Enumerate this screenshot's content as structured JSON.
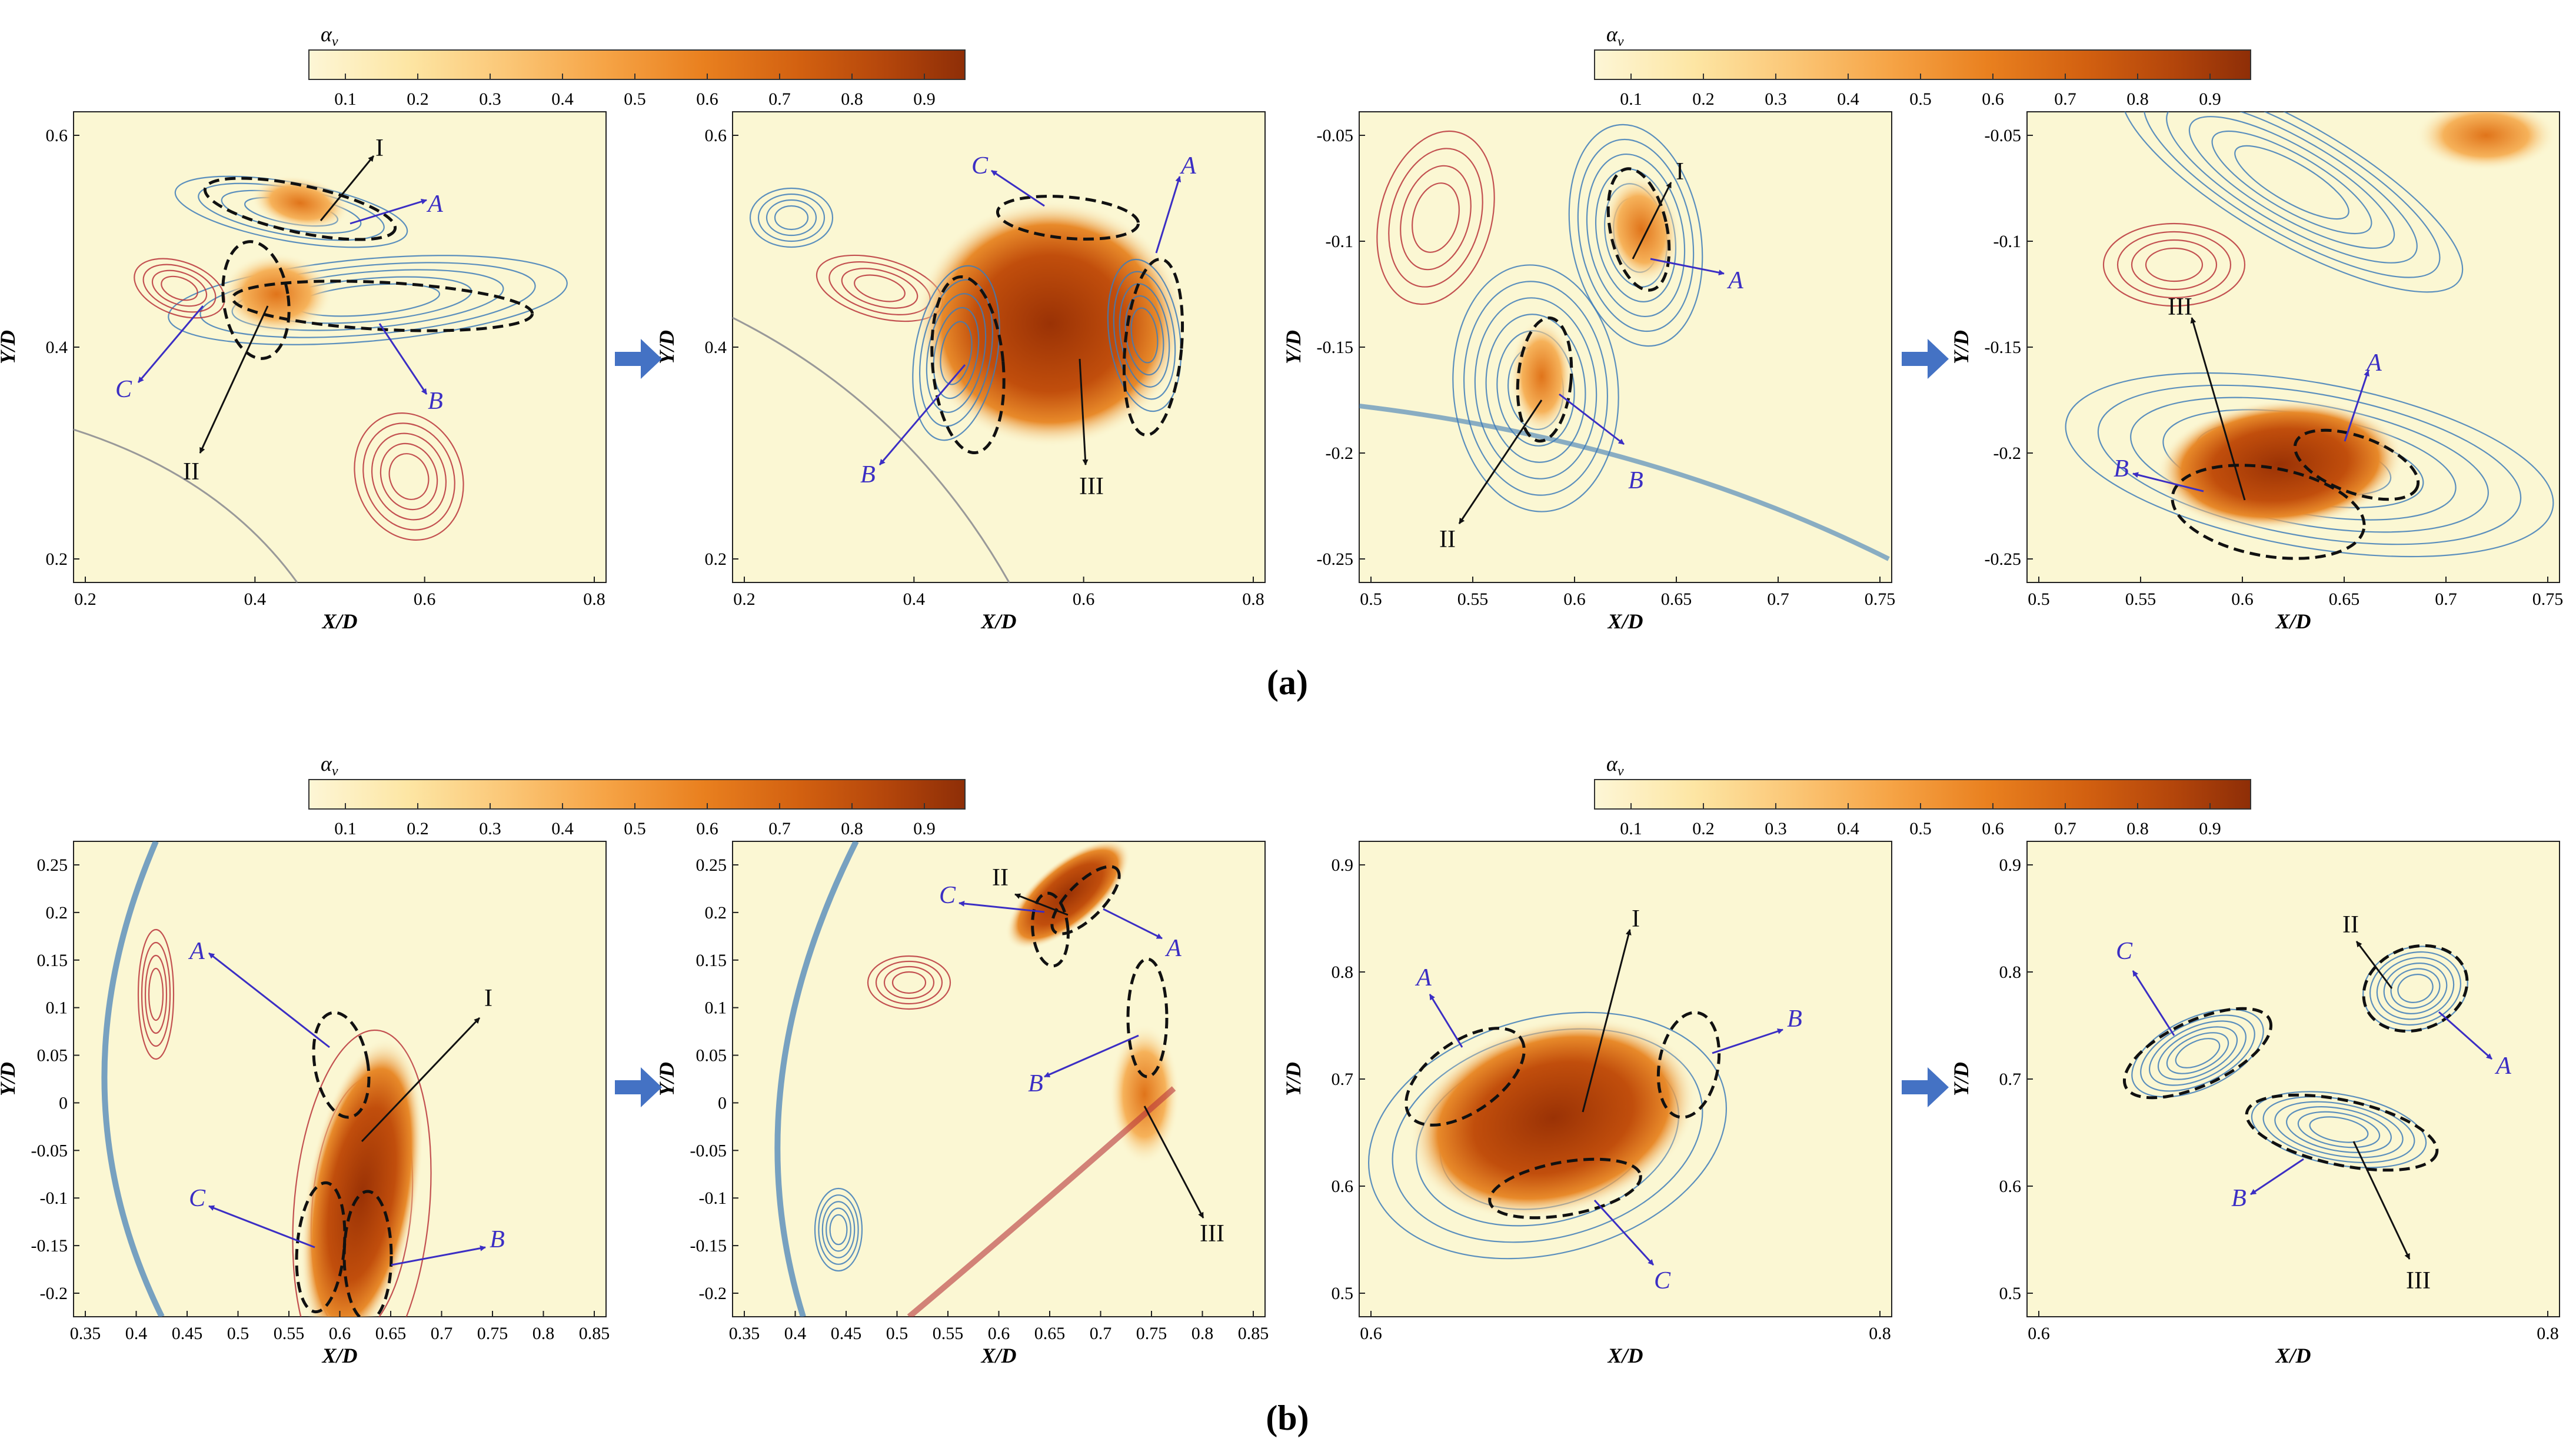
{
  "figure": {
    "colorbar_symbol": "αv",
    "colorbar_ticks": [
      "0.1",
      "0.2",
      "0.3",
      "0.4",
      "0.5",
      "0.6",
      "0.7",
      "0.8",
      "0.9"
    ],
    "colorbar_colors": [
      "#fdf5d2",
      "#fde7a8",
      "#fbc878",
      "#f7a647",
      "#ea8320",
      "#d66210",
      "#bb4a0c",
      "#953006"
    ],
    "contour_colors": {
      "vorticity_neg": "#3e7cb8",
      "vorticity_pos": "#b8343a",
      "background": "#fbf7d3",
      "ellipse": "#111111",
      "arrow_blue": "#3b2ec4"
    },
    "subfigure_a": "(a)",
    "subfigure_b": "(b)"
  },
  "panels": [
    {
      "id": "a1",
      "x_label": "X/D",
      "y_label": "Y/D",
      "x_ticks": [
        "0.2",
        "0.4",
        "0.6",
        "0.8"
      ],
      "y_ticks": [
        "0.6",
        "0.4",
        "0.2"
      ],
      "labels": [
        "I",
        "A",
        "C",
        "B",
        "II"
      ]
    },
    {
      "id": "a2",
      "x_label": "X/D",
      "y_label": "Y/D",
      "x_ticks": [
        "0.2",
        "0.4",
        "0.6",
        "0.8"
      ],
      "y_ticks": [
        "0.6",
        "0.4",
        "0.2"
      ],
      "labels": [
        "C",
        "A",
        "B",
        "III"
      ]
    },
    {
      "id": "a3",
      "x_label": "X/D",
      "y_label": "Y/D",
      "x_ticks": [
        "0.5",
        "0.55",
        "0.6",
        "0.65",
        "0.7",
        "0.75"
      ],
      "y_ticks": [
        "-0.05",
        "-0.1",
        "-0.15",
        "-0.2",
        "-0.25"
      ],
      "labels": [
        "I",
        "A",
        "B",
        "II"
      ]
    },
    {
      "id": "a4",
      "x_label": "X/D",
      "y_label": "Y/D",
      "x_ticks": [
        "0.5",
        "0.55",
        "0.6",
        "0.65",
        "0.7",
        "0.75"
      ],
      "y_ticks": [
        "-0.05",
        "-0.1",
        "-0.15",
        "-0.2",
        "-0.25"
      ],
      "labels": [
        "III",
        "A",
        "B"
      ]
    },
    {
      "id": "b1",
      "x_label": "X/D",
      "y_label": "Y/D",
      "x_ticks": [
        "0.35",
        "0.4",
        "0.45",
        "0.5",
        "0.55",
        "0.6",
        "0.65",
        "0.7",
        "0.75",
        "0.8",
        "0.85"
      ],
      "y_ticks": [
        "0.25",
        "0.2",
        "0.15",
        "0.1",
        "0.05",
        "0",
        "-0.05",
        "-0.1",
        "-0.15",
        "-0.2"
      ],
      "labels": [
        "A",
        "I",
        "C",
        "B"
      ]
    },
    {
      "id": "b2",
      "x_label": "X/D",
      "y_label": "Y/D",
      "x_ticks": [
        "0.35",
        "0.4",
        "0.45",
        "0.5",
        "0.55",
        "0.6",
        "0.65",
        "0.7",
        "0.75",
        "0.8",
        "0.85"
      ],
      "y_ticks": [
        "0.25",
        "0.2",
        "0.15",
        "0.1",
        "0.05",
        "0",
        "-0.05",
        "-0.1",
        "-0.15",
        "-0.2"
      ],
      "labels": [
        "II",
        "C",
        "A",
        "B",
        "III"
      ]
    },
    {
      "id": "b3",
      "x_label": "X/D",
      "y_label": "Y/D",
      "x_ticks": [
        "0.6",
        "0.8"
      ],
      "y_ticks": [
        "0.9",
        "0.8",
        "0.7",
        "0.6",
        "0.5"
      ],
      "labels": [
        "I",
        "A",
        "B",
        "C"
      ]
    },
    {
      "id": "b4",
      "x_label": "X/D",
      "y_label": "Y/D",
      "x_ticks": [
        "0.6",
        "0.8"
      ],
      "y_ticks": [
        "0.9",
        "0.8",
        "0.7",
        "0.6",
        "0.5"
      ],
      "labels": [
        "II",
        "C",
        "A",
        "B",
        "III"
      ]
    }
  ]
}
